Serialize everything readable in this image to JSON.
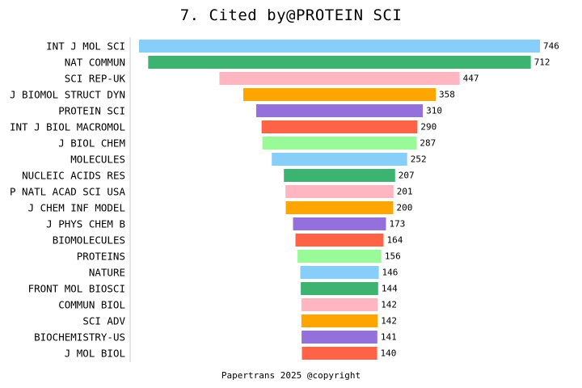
{
  "chart_data": {
    "type": "bar",
    "orientation": "horizontal",
    "style": "centered-funnel",
    "title": "7. Cited by@PROTEIN SCI",
    "footer": "Papertrans 2025 @copyright",
    "categories": [
      "INT J MOL SCI",
      "NAT COMMUN",
      "SCI REP-UK",
      "J BIOMOL STRUCT DYN",
      "PROTEIN SCI",
      "INT J BIOL MACROMOL",
      "J BIOL CHEM",
      "MOLECULES",
      "NUCLEIC ACIDS RES",
      "P NATL ACAD SCI USA",
      "J CHEM INF MODEL",
      "J PHYS CHEM B",
      "BIOMOLECULES",
      "PROTEINS",
      "NATURE",
      "FRONT MOL BIOSCI",
      "COMMUN BIOL",
      "SCI ADV",
      "BIOCHEMISTRY-US",
      "J MOL BIOL"
    ],
    "values": [
      746,
      712,
      447,
      358,
      310,
      290,
      287,
      252,
      207,
      201,
      200,
      173,
      164,
      156,
      146,
      144,
      142,
      142,
      141,
      140
    ],
    "colors": [
      "#87CEFA",
      "#3CB371",
      "#FFB6C1",
      "#FFA500",
      "#9370DB",
      "#FF6347",
      "#98FB98"
    ],
    "grid": false,
    "legend": "none"
  }
}
